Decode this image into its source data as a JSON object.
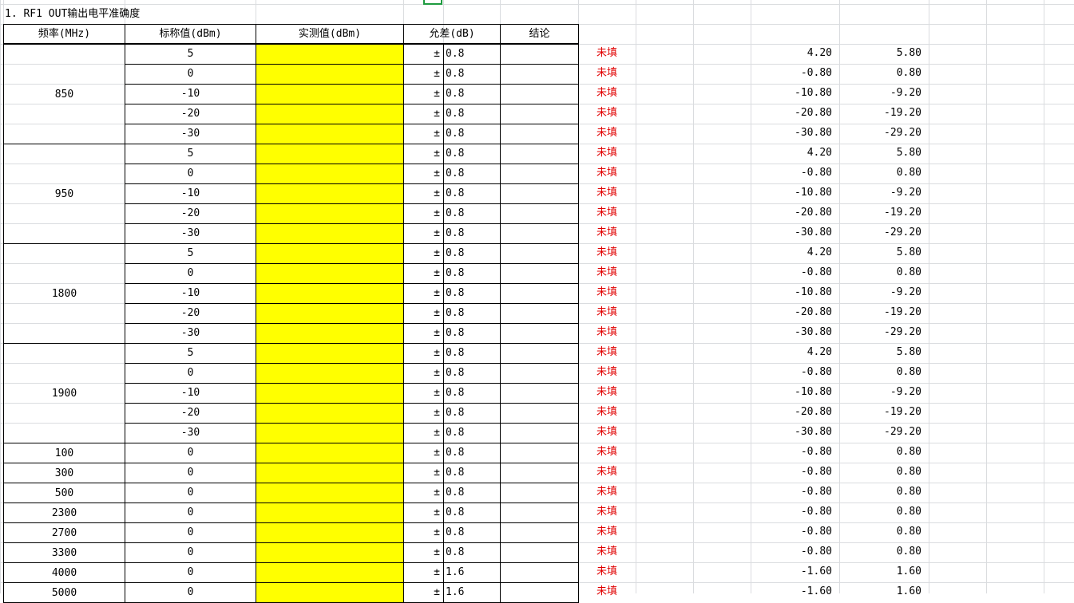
{
  "sheet": {
    "title": "1. RF1 OUT输出电平准确度",
    "headers": {
      "freq": "频率(MHz)",
      "nominal": "标称值(dBm)",
      "measured": "实测值(dBm)",
      "tolerance": "允差(dB)",
      "conclusion": "结论"
    },
    "pm_symbol": "±",
    "status_text": "未填",
    "colors": {
      "measured_fill": "#ffff00",
      "status": "#e00000",
      "selection": "#1e9b3f"
    },
    "groups": [
      {
        "freq": "850",
        "rows": [
          {
            "nominal": "5",
            "tol": "0.8",
            "low": "4.20",
            "high": "5.80"
          },
          {
            "nominal": "0",
            "tol": "0.8",
            "low": "-0.80",
            "high": "0.80"
          },
          {
            "nominal": "-10",
            "tol": "0.8",
            "low": "-10.80",
            "high": "-9.20"
          },
          {
            "nominal": "-20",
            "tol": "0.8",
            "low": "-20.80",
            "high": "-19.20"
          },
          {
            "nominal": "-30",
            "tol": "0.8",
            "low": "-30.80",
            "high": "-29.20"
          }
        ]
      },
      {
        "freq": "950",
        "rows": [
          {
            "nominal": "5",
            "tol": "0.8",
            "low": "4.20",
            "high": "5.80"
          },
          {
            "nominal": "0",
            "tol": "0.8",
            "low": "-0.80",
            "high": "0.80"
          },
          {
            "nominal": "-10",
            "tol": "0.8",
            "low": "-10.80",
            "high": "-9.20"
          },
          {
            "nominal": "-20",
            "tol": "0.8",
            "low": "-20.80",
            "high": "-19.20"
          },
          {
            "nominal": "-30",
            "tol": "0.8",
            "low": "-30.80",
            "high": "-29.20"
          }
        ]
      },
      {
        "freq": "1800",
        "rows": [
          {
            "nominal": "5",
            "tol": "0.8",
            "low": "4.20",
            "high": "5.80"
          },
          {
            "nominal": "0",
            "tol": "0.8",
            "low": "-0.80",
            "high": "0.80"
          },
          {
            "nominal": "-10",
            "tol": "0.8",
            "low": "-10.80",
            "high": "-9.20"
          },
          {
            "nominal": "-20",
            "tol": "0.8",
            "low": "-20.80",
            "high": "-19.20"
          },
          {
            "nominal": "-30",
            "tol": "0.8",
            "low": "-30.80",
            "high": "-29.20"
          }
        ]
      },
      {
        "freq": "1900",
        "rows": [
          {
            "nominal": "5",
            "tol": "0.8",
            "low": "4.20",
            "high": "5.80"
          },
          {
            "nominal": "0",
            "tol": "0.8",
            "low": "-0.80",
            "high": "0.80"
          },
          {
            "nominal": "-10",
            "tol": "0.8",
            "low": "-10.80",
            "high": "-9.20"
          },
          {
            "nominal": "-20",
            "tol": "0.8",
            "low": "-20.80",
            "high": "-19.20"
          },
          {
            "nominal": "-30",
            "tol": "0.8",
            "low": "-30.80",
            "high": "-29.20"
          }
        ]
      },
      {
        "freq": "100",
        "rows": [
          {
            "nominal": "0",
            "tol": "0.8",
            "low": "-0.80",
            "high": "0.80"
          }
        ]
      },
      {
        "freq": "300",
        "rows": [
          {
            "nominal": "0",
            "tol": "0.8",
            "low": "-0.80",
            "high": "0.80"
          }
        ]
      },
      {
        "freq": "500",
        "rows": [
          {
            "nominal": "0",
            "tol": "0.8",
            "low": "-0.80",
            "high": "0.80"
          }
        ]
      },
      {
        "freq": "2300",
        "rows": [
          {
            "nominal": "0",
            "tol": "0.8",
            "low": "-0.80",
            "high": "0.80"
          }
        ]
      },
      {
        "freq": "2700",
        "rows": [
          {
            "nominal": "0",
            "tol": "0.8",
            "low": "-0.80",
            "high": "0.80"
          }
        ]
      },
      {
        "freq": "3300",
        "rows": [
          {
            "nominal": "0",
            "tol": "0.8",
            "low": "-0.80",
            "high": "0.80"
          }
        ]
      },
      {
        "freq": "4000",
        "rows": [
          {
            "nominal": "0",
            "tol": "1.6",
            "low": "-1.60",
            "high": "1.60"
          }
        ]
      },
      {
        "freq": "5000",
        "rows": [
          {
            "nominal": "0",
            "tol": "1.6",
            "low": "-1.60",
            "high": "1.60"
          }
        ]
      }
    ]
  }
}
